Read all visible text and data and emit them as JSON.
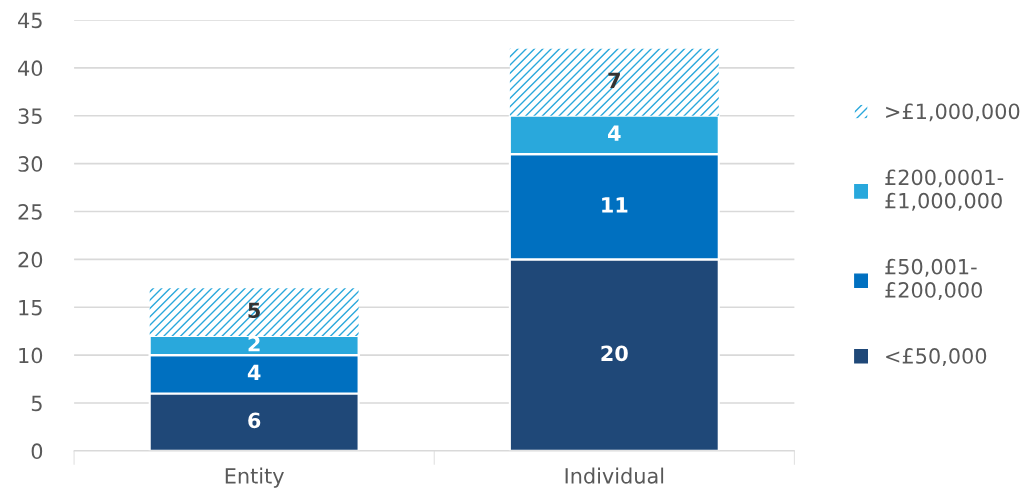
{
  "chart_data": {
    "type": "bar",
    "stacked": true,
    "categories": [
      "Entity",
      "Individual"
    ],
    "series": [
      {
        "name": "<£50,000",
        "color": "#1f4878",
        "values": [
          6,
          20
        ]
      },
      {
        "name": "£50,001-£200,000",
        "color": "#0070c0",
        "values": [
          4,
          11
        ]
      },
      {
        "name": "£200,0001-£1,000,000",
        "color": "#29a8dc",
        "values": [
          2,
          4
        ]
      },
      {
        "name": ">£1,000,000",
        "color": "#29a8dc",
        "values": [
          5,
          7
        ]
      }
    ],
    "ylim": [
      0,
      45
    ],
    "yticks": [
      0,
      5,
      10,
      15,
      20,
      25,
      30,
      35,
      40,
      45
    ],
    "grid": "y",
    "legend": "right",
    "data_labels": true
  }
}
